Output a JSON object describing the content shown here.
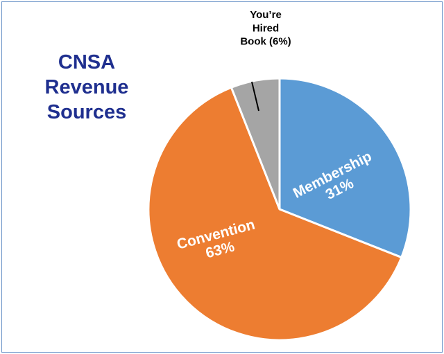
{
  "title_lines": [
    "CNSA",
    "Revenue",
    "Sources"
  ],
  "chart_data": {
    "type": "pie",
    "title": "CNSA Revenue Sources",
    "slices": [
      {
        "name": "Membership",
        "value": 31,
        "label_lines": [
          "Membership",
          "31%"
        ],
        "color": "#5b9bd5",
        "label_color": "#ffffff"
      },
      {
        "name": "Convention",
        "value": 63,
        "label_lines": [
          "Convention",
          "63%"
        ],
        "color": "#ed7d31",
        "label_color": "#ffffff"
      },
      {
        "name": "You're Hired Book",
        "value": 6,
        "label_lines": [
          "You’re",
          "Hired",
          "Book (6%)"
        ],
        "color": "#a5a5a5",
        "label_color": "#000000"
      }
    ],
    "start_angle_deg": 0,
    "direction": "clockwise",
    "legend": "none"
  }
}
